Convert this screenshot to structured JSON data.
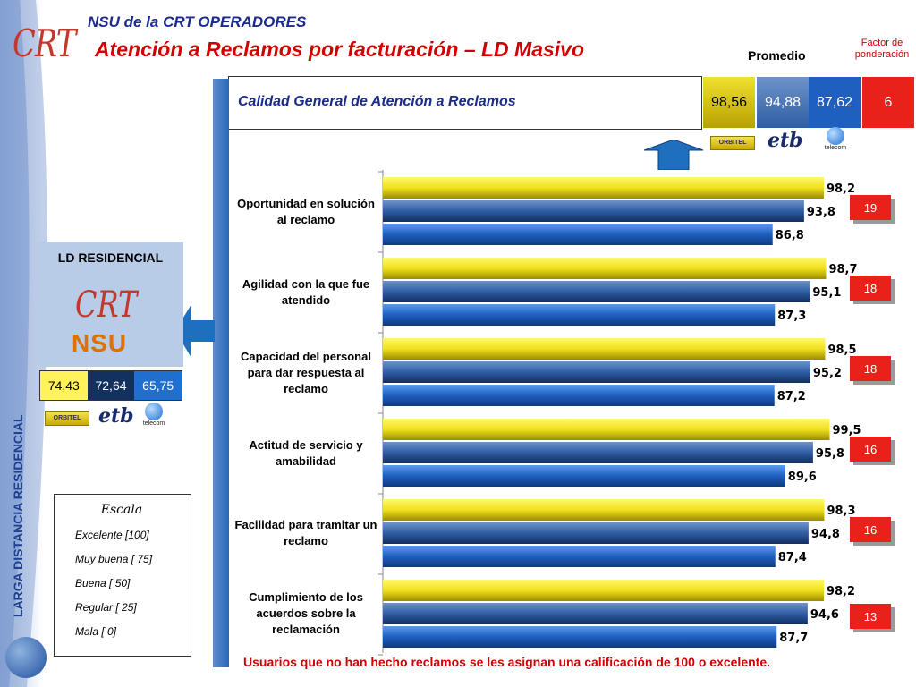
{
  "header": {
    "logo_text": "CRT",
    "subtitle": "NSU de la CRT  OPERADORES",
    "title": "Atención a Reclamos por facturación – LD Masivo",
    "promedio_label": "Promedio",
    "factor_label": "Factor de ponderación"
  },
  "summary": {
    "label": "Calidad General de Atención a Reclamos",
    "values": [
      "98,56",
      "94,88",
      "87,62"
    ],
    "factor": "6"
  },
  "operators": {
    "orbitel": "ORBITEL",
    "etb": "etb",
    "telecom": "telecom"
  },
  "colors": {
    "orbitel": "#f0e01e",
    "etb": "#2e5ea5",
    "telecom": "#1f5fbf",
    "accent_red": "#e8221a",
    "title_blue": "#1a2b8c"
  },
  "sidebar": {
    "vertical_text": "LARGA DISTANCIA RESIDENCIAL",
    "ld_title": "LD RESIDENCIAL",
    "crt_text": "CRT",
    "nsu_text": "NSU",
    "values": [
      "74,43",
      "72,64",
      "65,75"
    ]
  },
  "escala": {
    "title": "Escala",
    "items": [
      "Excelente [100]",
      "Muy buena [ 75]",
      "Buena     [ 50]",
      "Regular   [ 25]",
      "Mala      [  0]"
    ]
  },
  "footnote": "Usuarios que no han hecho reclamos se les asignan una calificación de 100 o excelente.",
  "chart_data": {
    "type": "bar",
    "orientation": "horizontal",
    "categories": [
      "Oportunidad en solución al reclamo",
      "Agilidad con la que fue atendido",
      "Capacidad del personal para dar respuesta al reclamo",
      "Actitud de servicio y amabilidad",
      "Facilidad para tramitar un reclamo",
      "Cumplimiento de los acuerdos sobre la reclamación"
    ],
    "series": [
      {
        "name": "ORBITEL",
        "values": [
          98.2,
          98.7,
          98.5,
          99.5,
          98.3,
          98.2
        ],
        "labels": [
          "98,2",
          "98,7",
          "98,5",
          "99,5",
          "98,3",
          "98,2"
        ]
      },
      {
        "name": "etb",
        "values": [
          93.8,
          95.1,
          95.2,
          95.8,
          94.8,
          94.6
        ],
        "labels": [
          "93,8",
          "95,1",
          "95,2",
          "95,8",
          "94,8",
          "94,6"
        ]
      },
      {
        "name": "telecom",
        "values": [
          86.8,
          87.3,
          87.2,
          89.6,
          87.4,
          87.7
        ],
        "labels": [
          "86,8",
          "87,3",
          "87,2",
          "89,6",
          "87,4",
          "87,7"
        ]
      }
    ],
    "weights": [
      "19",
      "18",
      "18",
      "16",
      "16",
      "13"
    ],
    "xlim": [
      0,
      100
    ],
    "grid": false
  }
}
